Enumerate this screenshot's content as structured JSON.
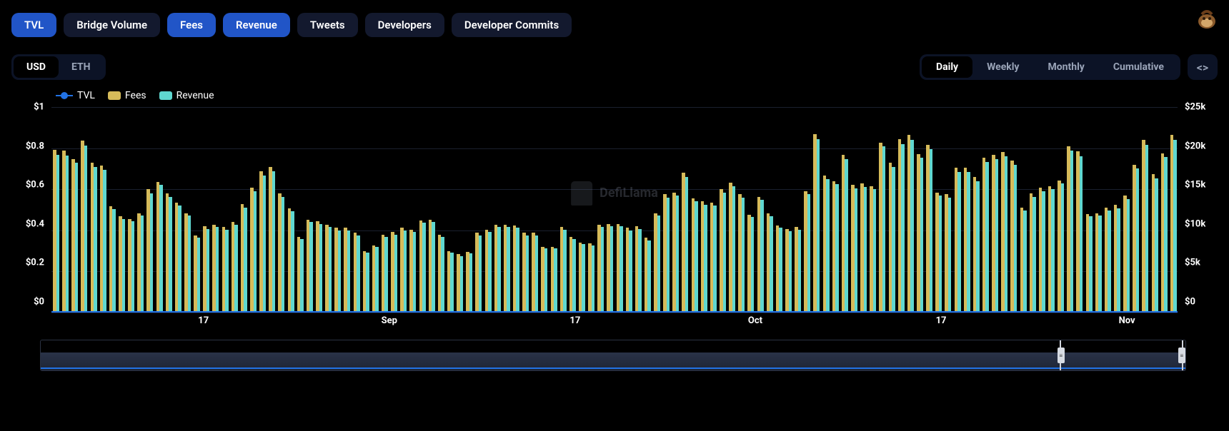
{
  "metric_tabs": {
    "items": [
      {
        "label": "TVL",
        "active": true
      },
      {
        "label": "Bridge Volume",
        "active": false
      },
      {
        "label": "Fees",
        "active": true
      },
      {
        "label": "Revenue",
        "active": true
      },
      {
        "label": "Tweets",
        "active": false
      },
      {
        "label": "Developers",
        "active": false
      },
      {
        "label": "Developer Commits",
        "active": false
      }
    ]
  },
  "currency": {
    "options": [
      {
        "label": "USD",
        "active": true
      },
      {
        "label": "ETH",
        "active": false
      }
    ]
  },
  "interval": {
    "options": [
      {
        "label": "Daily",
        "active": true
      },
      {
        "label": "Weekly",
        "active": false
      },
      {
        "label": "Monthly",
        "active": false
      },
      {
        "label": "Cumulative",
        "active": false
      }
    ]
  },
  "expand_glyph": "<>",
  "legend": {
    "items": [
      {
        "label": "TVL",
        "type": "line",
        "color": "#2172e5"
      },
      {
        "label": "Fees",
        "type": "bar",
        "color": "#d6bb5a"
      },
      {
        "label": "Revenue",
        "type": "bar",
        "color": "#5fd8d0"
      }
    ]
  },
  "watermark_text": "DefiLlama",
  "chart": {
    "y_left": {
      "ticks": [
        "$1",
        "$0.8",
        "$0.6",
        "$0.4",
        "$0.2",
        "$0"
      ],
      "min": 0,
      "max": 1
    },
    "y_right": {
      "ticks": [
        "$25k",
        "$20k",
        "$15k",
        "$10k",
        "$5k",
        "$0"
      ],
      "min": 0,
      "max": 25000
    },
    "grid_color": "#1a1f2e",
    "bar_colors": {
      "fees": "#d6bb5a",
      "revenue": "#5fd8d0"
    },
    "tvl_line_color": "#2172e5",
    "x_ticks": [
      {
        "label": "17",
        "pos": 0.135
      },
      {
        "label": "Sep",
        "pos": 0.3
      },
      {
        "label": "17",
        "pos": 0.465
      },
      {
        "label": "Oct",
        "pos": 0.625
      },
      {
        "label": "17",
        "pos": 0.79
      },
      {
        "label": "Nov",
        "pos": 0.955
      }
    ],
    "series": [
      {
        "fees": 19800,
        "revenue": 19200
      },
      {
        "fees": 19700,
        "revenue": 19100
      },
      {
        "fees": 18700,
        "revenue": 18200
      },
      {
        "fees": 20900,
        "revenue": 20300
      },
      {
        "fees": 18200,
        "revenue": 17700
      },
      {
        "fees": 17900,
        "revenue": 17400
      },
      {
        "fees": 12900,
        "revenue": 12600
      },
      {
        "fees": 11700,
        "revenue": 11400
      },
      {
        "fees": 11400,
        "revenue": 11100
      },
      {
        "fees": 12100,
        "revenue": 11800
      },
      {
        "fees": 15000,
        "revenue": 14500
      },
      {
        "fees": 15900,
        "revenue": 15500
      },
      {
        "fees": 14500,
        "revenue": 14100
      },
      {
        "fees": 13400,
        "revenue": 13000
      },
      {
        "fees": 12100,
        "revenue": 11800
      },
      {
        "fees": 9400,
        "revenue": 9100
      },
      {
        "fees": 10500,
        "revenue": 10200
      },
      {
        "fees": 10700,
        "revenue": 10400
      },
      {
        "fees": 10400,
        "revenue": 10100
      },
      {
        "fees": 11000,
        "revenue": 10700
      },
      {
        "fees": 13200,
        "revenue": 12800
      },
      {
        "fees": 15200,
        "revenue": 14800
      },
      {
        "fees": 17200,
        "revenue": 16700
      },
      {
        "fees": 17700,
        "revenue": 17200
      },
      {
        "fees": 14500,
        "revenue": 14100
      },
      {
        "fees": 12700,
        "revenue": 12300
      },
      {
        "fees": 9200,
        "revenue": 8900
      },
      {
        "fees": 11300,
        "revenue": 11000
      },
      {
        "fees": 11100,
        "revenue": 10800
      },
      {
        "fees": 10700,
        "revenue": 10400
      },
      {
        "fees": 10300,
        "revenue": 10000
      },
      {
        "fees": 10300,
        "revenue": 10000
      },
      {
        "fees": 9700,
        "revenue": 9400
      },
      {
        "fees": 7500,
        "revenue": 7300
      },
      {
        "fees": 8200,
        "revenue": 8000
      },
      {
        "fees": 9500,
        "revenue": 9200
      },
      {
        "fees": 9800,
        "revenue": 9500
      },
      {
        "fees": 10300,
        "revenue": 10000
      },
      {
        "fees": 10100,
        "revenue": 9800
      },
      {
        "fees": 11200,
        "revenue": 10900
      },
      {
        "fees": 11300,
        "revenue": 11000
      },
      {
        "fees": 9500,
        "revenue": 9200
      },
      {
        "fees": 7500,
        "revenue": 7300
      },
      {
        "fees": 7100,
        "revenue": 6900
      },
      {
        "fees": 7400,
        "revenue": 7200
      },
      {
        "fees": 9700,
        "revenue": 9400
      },
      {
        "fees": 10100,
        "revenue": 9800
      },
      {
        "fees": 10700,
        "revenue": 10400
      },
      {
        "fees": 10700,
        "revenue": 10400
      },
      {
        "fees": 10600,
        "revenue": 10300
      },
      {
        "fees": 9700,
        "revenue": 9400
      },
      {
        "fees": 9700,
        "revenue": 9400
      },
      {
        "fees": 8000,
        "revenue": 7800
      },
      {
        "fees": 8000,
        "revenue": 7800
      },
      {
        "fees": 10400,
        "revenue": 10100
      },
      {
        "fees": 9200,
        "revenue": 8900
      },
      {
        "fees": 8500,
        "revenue": 8300
      },
      {
        "fees": 8400,
        "revenue": 8200
      },
      {
        "fees": 10700,
        "revenue": 10400
      },
      {
        "fees": 10800,
        "revenue": 10500
      },
      {
        "fees": 10800,
        "revenue": 10500
      },
      {
        "fees": 10300,
        "revenue": 10000
      },
      {
        "fees": 10500,
        "revenue": 10200
      },
      {
        "fees": 9100,
        "revenue": 8800
      },
      {
        "fees": 12100,
        "revenue": 11800
      },
      {
        "fees": 14400,
        "revenue": 14000
      },
      {
        "fees": 14600,
        "revenue": 14200
      },
      {
        "fees": 17000,
        "revenue": 16500
      },
      {
        "fees": 13900,
        "revenue": 13500
      },
      {
        "fees": 13500,
        "revenue": 13100
      },
      {
        "fees": 13400,
        "revenue": 13000
      },
      {
        "fees": 15000,
        "revenue": 14600
      },
      {
        "fees": 15800,
        "revenue": 15400
      },
      {
        "fees": 14400,
        "revenue": 14000
      },
      {
        "fees": 11900,
        "revenue": 11600
      },
      {
        "fees": 14100,
        "revenue": 13700
      },
      {
        "fees": 12100,
        "revenue": 11700
      },
      {
        "fees": 10600,
        "revenue": 10300
      },
      {
        "fees": 10200,
        "revenue": 9900
      },
      {
        "fees": 10400,
        "revenue": 10100
      },
      {
        "fees": 14800,
        "revenue": 14400
      },
      {
        "fees": 21700,
        "revenue": 21100
      },
      {
        "fees": 16700,
        "revenue": 16200
      },
      {
        "fees": 16000,
        "revenue": 15600
      },
      {
        "fees": 19200,
        "revenue": 18700
      },
      {
        "fees": 15500,
        "revenue": 15100
      },
      {
        "fees": 15700,
        "revenue": 15300
      },
      {
        "fees": 15400,
        "revenue": 15000
      },
      {
        "fees": 20700,
        "revenue": 20200
      },
      {
        "fees": 18200,
        "revenue": 17700
      },
      {
        "fees": 21100,
        "revenue": 20500
      },
      {
        "fees": 21600,
        "revenue": 21000
      },
      {
        "fees": 19300,
        "revenue": 18800
      },
      {
        "fees": 20400,
        "revenue": 19900
      },
      {
        "fees": 14600,
        "revenue": 14200
      },
      {
        "fees": 14400,
        "revenue": 14000
      },
      {
        "fees": 17600,
        "revenue": 17100
      },
      {
        "fees": 17600,
        "revenue": 17100
      },
      {
        "fees": 16500,
        "revenue": 16000
      },
      {
        "fees": 18800,
        "revenue": 18300
      },
      {
        "fees": 19200,
        "revenue": 18700
      },
      {
        "fees": 19500,
        "revenue": 19000
      },
      {
        "fees": 18500,
        "revenue": 18000
      },
      {
        "fees": 12800,
        "revenue": 12400
      },
      {
        "fees": 14500,
        "revenue": 14100
      },
      {
        "fees": 15200,
        "revenue": 14800
      },
      {
        "fees": 15400,
        "revenue": 15000
      },
      {
        "fees": 16100,
        "revenue": 15700
      },
      {
        "fees": 20200,
        "revenue": 19700
      },
      {
        "fees": 19600,
        "revenue": 19000
      },
      {
        "fees": 12000,
        "revenue": 11700
      },
      {
        "fees": 12100,
        "revenue": 11800
      },
      {
        "fees": 12800,
        "revenue": 12400
      },
      {
        "fees": 13100,
        "revenue": 12700
      },
      {
        "fees": 14200,
        "revenue": 13800
      },
      {
        "fees": 18000,
        "revenue": 17500
      },
      {
        "fees": 21000,
        "revenue": 20400
      },
      {
        "fees": 16800,
        "revenue": 16300
      },
      {
        "fees": 19400,
        "revenue": 18900
      },
      {
        "fees": 21600,
        "revenue": 21000
      }
    ]
  },
  "brush": {
    "window_start": 0.89,
    "window_end": 0.998,
    "line_color": "#2172e5",
    "area_color_top": "#2a3348",
    "area_color_bottom": "#1e2536",
    "handle_color": "#d8dce3"
  }
}
